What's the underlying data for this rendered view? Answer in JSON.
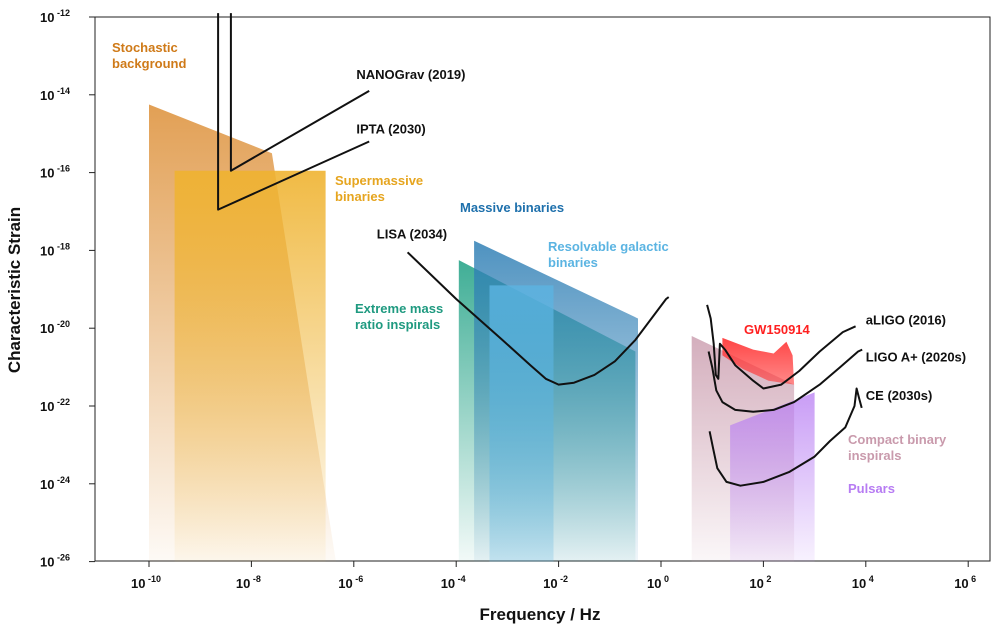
{
  "chart_data": {
    "type": "area",
    "title": "",
    "xlabel": "Frequency / Hz",
    "ylabel": "Characteristic Strain",
    "x_scale": "log10",
    "y_scale": "log10",
    "xlim_log10": [
      -11.1,
      6.2
    ],
    "ylim_log10": [
      -26,
      -12
    ],
    "x_ticks": [
      {
        "base": "10",
        "exp": "-10",
        "value": -10
      },
      {
        "base": "10",
        "exp": "-8",
        "value": -8
      },
      {
        "base": "10",
        "exp": "-6",
        "value": -6
      },
      {
        "base": "10",
        "exp": "-4",
        "value": -4
      },
      {
        "base": "10",
        "exp": "-2",
        "value": -2
      },
      {
        "base": "10",
        "exp": "0",
        "value": 0
      },
      {
        "base": "10",
        "exp": "2",
        "value": 2
      },
      {
        "base": "10",
        "exp": "4",
        "value": 4
      },
      {
        "base": "10",
        "exp": "6",
        "value": 6
      }
    ],
    "y_ticks": [
      {
        "base": "10",
        "exp": "-12",
        "value": -12
      },
      {
        "base": "10",
        "exp": "-14",
        "value": -14
      },
      {
        "base": "10",
        "exp": "-16",
        "value": -16
      },
      {
        "base": "10",
        "exp": "-18",
        "value": -18
      },
      {
        "base": "10",
        "exp": "-20",
        "value": -20
      },
      {
        "base": "10",
        "exp": "-22",
        "value": -22
      },
      {
        "base": "10",
        "exp": "-24",
        "value": -24
      },
      {
        "base": "10",
        "exp": "-26",
        "value": -26
      }
    ],
    "regions": [
      {
        "id": "stochastic-background",
        "label": "Stochastic background",
        "label_lines": [
          "Stochastic",
          "background"
        ],
        "color": "#d8801c",
        "points": [
          [
            -10,
            -14.25
          ],
          [
            -7.6,
            -15.5
          ],
          [
            -6.35,
            -26
          ],
          [
            -10,
            -26
          ]
        ]
      },
      {
        "id": "supermassive-binaries",
        "label": "Supermassive binaries",
        "label_lines": [
          "Supermassive",
          "binaries"
        ],
        "color": "#efb330",
        "points": [
          [
            -9.5,
            -15.95
          ],
          [
            -6.55,
            -15.95
          ],
          [
            -6.55,
            -26
          ],
          [
            -9.5,
            -26
          ]
        ]
      },
      {
        "id": "extreme-mass-ratio",
        "label": "Extreme mass ratio inspirals",
        "label_lines": [
          "Extreme mass",
          "ratio inspirals"
        ],
        "color": "#2aa58a",
        "points": [
          [
            -3.95,
            -18.25
          ],
          [
            -0.5,
            -20.6
          ],
          [
            -0.5,
            -26
          ],
          [
            -3.95,
            -26
          ]
        ]
      },
      {
        "id": "massive-binaries",
        "label": "Massive binaries",
        "label_lines": [
          "Massive binaries"
        ],
        "color": "#2f7fb5",
        "points": [
          [
            -3.65,
            -17.75
          ],
          [
            -0.45,
            -19.75
          ],
          [
            -0.45,
            -26
          ],
          [
            -3.65,
            -26
          ]
        ]
      },
      {
        "id": "resolvable-galactic",
        "label": "Resolvable galactic binaries",
        "label_lines": [
          "Resolvable galactic",
          "binaries"
        ],
        "color": "#5bb4e2",
        "points": [
          [
            -3.35,
            -18.9
          ],
          [
            -2.1,
            -18.9
          ],
          [
            -2.1,
            -26
          ],
          [
            -3.35,
            -26
          ]
        ]
      },
      {
        "id": "compact-binary",
        "label": "Compact binary inspirals",
        "label_lines": [
          "Compact binary",
          "inspirals"
        ],
        "color": "#c99aac",
        "points": [
          [
            0.6,
            -20.2
          ],
          [
            2.6,
            -21.45
          ],
          [
            2.6,
            -26
          ],
          [
            0.6,
            -26
          ]
        ]
      },
      {
        "id": "pulsars",
        "label": "Pulsars",
        "label_lines": [
          "Pulsars"
        ],
        "color": "#b77cf3",
        "points": [
          [
            1.35,
            -22.5
          ],
          [
            3.0,
            -21.65
          ],
          [
            3.0,
            -26
          ],
          [
            1.35,
            -26
          ]
        ]
      },
      {
        "id": "gw150914",
        "label": "GW150914",
        "label_lines": [
          "GW150914"
        ],
        "color": "#ff3b3b",
        "points": [
          [
            1.2,
            -20.25
          ],
          [
            1.8,
            -20.55
          ],
          [
            2.2,
            -20.65
          ],
          [
            2.45,
            -20.35
          ],
          [
            2.57,
            -20.7
          ],
          [
            2.6,
            -21.45
          ],
          [
            2.1,
            -21.35
          ],
          [
            1.6,
            -21.05
          ],
          [
            1.2,
            -20.7
          ]
        ]
      }
    ],
    "sensitivity_curves": [
      {
        "id": "nanograv",
        "label": "NANOGrav (2019)",
        "points": [
          [
            -8.4,
            -11.9
          ],
          [
            -8.4,
            -15.95
          ],
          [
            -5.7,
            -13.9
          ]
        ],
        "label_at": [
          -5.95,
          -13.6
        ]
      },
      {
        "id": "ipta",
        "label": "IPTA (2030)",
        "points": [
          [
            -8.65,
            -11.9
          ],
          [
            -8.65,
            -16.95
          ],
          [
            -5.7,
            -15.2
          ]
        ],
        "label_at": [
          -5.95,
          -15.0
        ]
      },
      {
        "id": "lisa",
        "label": "LISA (2034)",
        "points": [
          [
            -4.95,
            -18.05
          ],
          [
            -4.0,
            -19.25
          ],
          [
            -3.1,
            -20.3
          ],
          [
            -2.55,
            -20.95
          ],
          [
            -2.25,
            -21.3
          ],
          [
            -2.0,
            -21.45
          ],
          [
            -1.7,
            -21.4
          ],
          [
            -1.3,
            -21.2
          ],
          [
            -0.9,
            -20.85
          ],
          [
            -0.5,
            -20.3
          ],
          [
            0.1,
            -19.25
          ],
          [
            0.15,
            -19.2
          ]
        ],
        "label_at": [
          -5.55,
          -17.7
        ]
      },
      {
        "id": "aligo",
        "label": "aLIGO (2016)",
        "points": [
          [
            0.9,
            -19.4
          ],
          [
            0.97,
            -19.75
          ],
          [
            1.03,
            -20.4
          ],
          [
            1.07,
            -21.2
          ],
          [
            1.12,
            -21.3
          ],
          [
            1.15,
            -20.4
          ],
          [
            1.25,
            -20.55
          ],
          [
            1.45,
            -20.95
          ],
          [
            1.8,
            -21.35
          ],
          [
            2.0,
            -21.55
          ],
          [
            2.35,
            -21.45
          ],
          [
            2.7,
            -21.1
          ],
          [
            3.1,
            -20.6
          ],
          [
            3.55,
            -20.1
          ],
          [
            3.8,
            -19.95
          ]
        ],
        "label_at": [
          4.0,
          -19.9
        ]
      },
      {
        "id": "ligo-aplus",
        "label": "LIGO A+ (2020s)",
        "points": [
          [
            0.93,
            -20.6
          ],
          [
            1.0,
            -21.0
          ],
          [
            1.08,
            -21.6
          ],
          [
            1.2,
            -21.9
          ],
          [
            1.45,
            -22.1
          ],
          [
            1.8,
            -22.15
          ],
          [
            2.2,
            -22.1
          ],
          [
            2.6,
            -21.9
          ],
          [
            3.1,
            -21.45
          ],
          [
            3.5,
            -21.0
          ],
          [
            3.85,
            -20.6
          ],
          [
            3.93,
            -20.55
          ]
        ],
        "label_at": [
          4.0,
          -20.85
        ]
      },
      {
        "id": "ce",
        "label": "CE (2030s)",
        "points": [
          [
            0.95,
            -22.65
          ],
          [
            1.02,
            -23.1
          ],
          [
            1.1,
            -23.6
          ],
          [
            1.28,
            -23.95
          ],
          [
            1.55,
            -24.05
          ],
          [
            2.0,
            -23.95
          ],
          [
            2.5,
            -23.7
          ],
          [
            3.0,
            -23.3
          ],
          [
            3.3,
            -22.9
          ],
          [
            3.6,
            -22.55
          ],
          [
            3.78,
            -22.0
          ],
          [
            3.82,
            -21.55
          ],
          [
            3.87,
            -21.8
          ],
          [
            3.92,
            -22.05
          ]
        ],
        "label_at": [
          4.0,
          -21.85
        ]
      }
    ]
  },
  "labels": {
    "x_axis_title": "Frequency / Hz",
    "y_axis_title": "Characteristic Strain",
    "region_labels": [
      {
        "id": "stochastic-background",
        "text": "Stochastic",
        "color": "#cf7a18"
      },
      {
        "id": "stochastic-background-2",
        "text": "background",
        "color": "#cf7a18"
      },
      {
        "id": "supermassive-1",
        "text": "Supermassive",
        "color": "#e6a51f"
      },
      {
        "id": "supermassive-2",
        "text": "binaries",
        "color": "#e6a51f"
      },
      {
        "id": "massive-binaries",
        "text": "Massive binaries",
        "color": "#1e70ac"
      },
      {
        "id": "resolvable-1",
        "text": "Resolvable galactic",
        "color": "#5bb4e2"
      },
      {
        "id": "resolvable-2",
        "text": "binaries",
        "color": "#5bb4e2"
      },
      {
        "id": "emri-1",
        "text": "Extreme mass",
        "color": "#1f9a80"
      },
      {
        "id": "emri-2",
        "text": "ratio inspirals",
        "color": "#1f9a80"
      },
      {
        "id": "gw150914",
        "text": "GW150914",
        "color": "#ff2020"
      },
      {
        "id": "compact-1",
        "text": "Compact binary",
        "color": "#c99aac"
      },
      {
        "id": "compact-2",
        "text": "inspirals",
        "color": "#c99aac"
      },
      {
        "id": "pulsars",
        "text": "Pulsars",
        "color": "#b77cf3"
      }
    ]
  }
}
